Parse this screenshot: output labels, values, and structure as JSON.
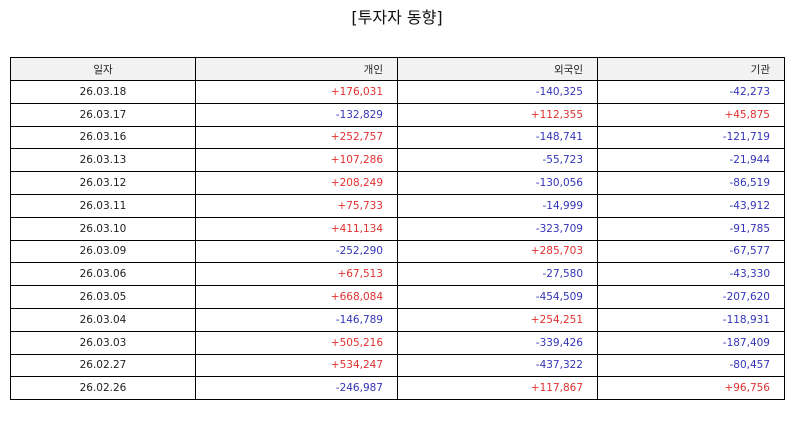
{
  "title": "[투자자 동향]",
  "colors": {
    "positive": "#e03131",
    "negative": "#3434b8",
    "header_bg": "#f2f2f2"
  },
  "table": {
    "headers": [
      "일자",
      "개인",
      "외국인",
      "기관"
    ],
    "rows": [
      [
        "26.03.18",
        "+176,031",
        "-140,325",
        "-42,273"
      ],
      [
        "26.03.17",
        "-132,829",
        "+112,355",
        "+45,875"
      ],
      [
        "26.03.16",
        "+252,757",
        "-148,741",
        "-121,719"
      ],
      [
        "26.03.13",
        "+107,286",
        "-55,723",
        "-21,944"
      ],
      [
        "26.03.12",
        "+208,249",
        "-130,056",
        "-86,519"
      ],
      [
        "26.03.11",
        "+75,733",
        "-14,999",
        "-43,912"
      ],
      [
        "26.03.10",
        "+411,134",
        "-323,709",
        "-91,785"
      ],
      [
        "26.03.09",
        "-252,290",
        "+285,703",
        "-67,577"
      ],
      [
        "26.03.06",
        "+67,513",
        "-27,580",
        "-43,330"
      ],
      [
        "26.03.05",
        "+668,084",
        "-454,509",
        "-207,620"
      ],
      [
        "26.03.04",
        "-146,789",
        "+254,251",
        "-118,931"
      ],
      [
        "26.03.03",
        "+505,216",
        "-339,426",
        "-187,409"
      ],
      [
        "26.02.27",
        "+534,247",
        "-437,322",
        "-80,457"
      ],
      [
        "26.02.26",
        "-246,987",
        "+117,867",
        "+96,756"
      ]
    ]
  }
}
